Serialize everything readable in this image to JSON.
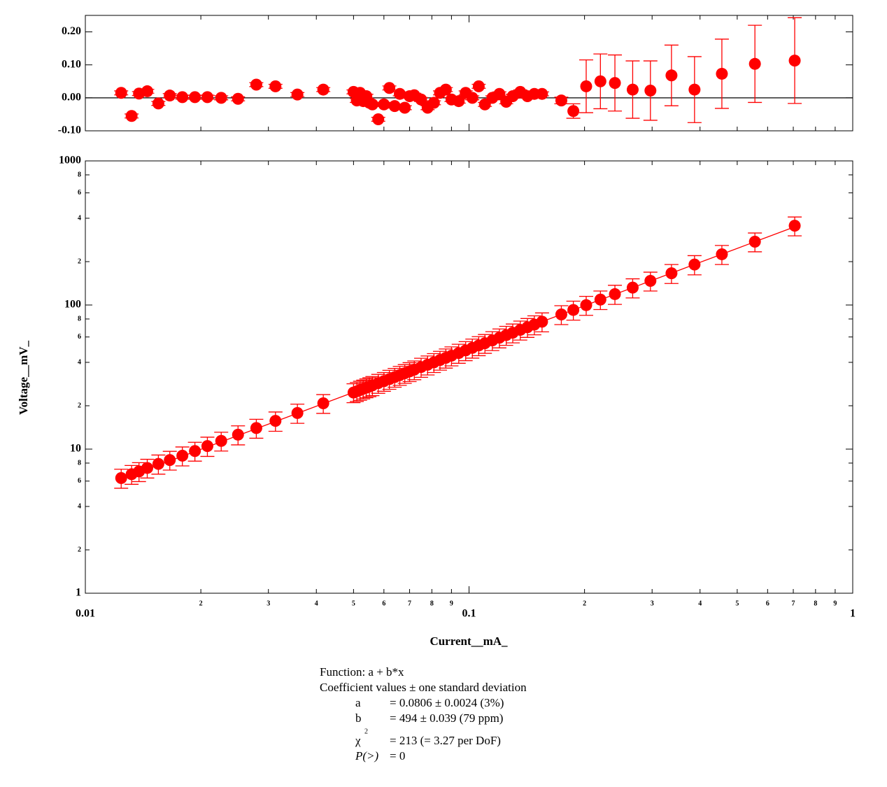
{
  "chart_data": [
    {
      "type": "scatter",
      "x": [
        0.0124,
        0.0132,
        0.0138,
        0.0145,
        0.0155,
        0.0166,
        0.0179,
        0.0193,
        0.0208,
        0.0226,
        0.025,
        0.0279,
        0.0313,
        0.0357,
        0.0417,
        0.05,
        0.051,
        0.052,
        0.053,
        0.054,
        0.055,
        0.056,
        0.058,
        0.06,
        0.062,
        0.064,
        0.066,
        0.068,
        0.07,
        0.072,
        0.075,
        0.078,
        0.081,
        0.084,
        0.087,
        0.09,
        0.094,
        0.098,
        0.102,
        0.106,
        0.11,
        0.115,
        0.12,
        0.125,
        0.13,
        0.136,
        0.142,
        0.148,
        0.155,
        0.174,
        0.187,
        0.202,
        0.22,
        0.24,
        0.267,
        0.297,
        0.337,
        0.387,
        0.456,
        0.556,
        0.706
      ],
      "xlim": [
        0.01,
        1
      ],
      "log_x": true,
      "ylim": [
        -0.1,
        0.25
      ],
      "yticks": [
        {
          "value": -0.1,
          "label": "-0.10"
        },
        {
          "value": 0,
          "label": "0.00"
        },
        {
          "value": 0.1,
          "label": "0.10"
        },
        {
          "value": 0.2,
          "label": "0.20"
        }
      ],
      "series": [
        {
          "color": "#ff0000",
          "values": [
            0.015,
            -0.055,
            0.013,
            0.02,
            -0.017,
            0.007,
            0.002,
            0.002,
            0.002,
            0.0,
            -0.003,
            0.04,
            0.035,
            0.01,
            0.025,
            0.018,
            -0.008,
            0.015,
            -0.01,
            0.005,
            -0.015,
            -0.02,
            -0.065,
            -0.02,
            0.03,
            -0.025,
            0.012,
            -0.03,
            0.005,
            0.008,
            -0.005,
            -0.03,
            -0.015,
            0.015,
            0.025,
            -0.005,
            -0.01,
            0.015,
            0.0,
            0.035,
            -0.02,
            0.0,
            0.012,
            -0.012,
            0.005,
            0.018,
            0.005,
            0.012,
            0.012,
            -0.008,
            -0.04,
            0.035,
            0.05,
            0.045,
            0.025,
            0.022,
            0.068,
            0.025,
            0.073,
            0.103,
            0.113
          ],
          "errors": [
            0.006,
            0.006,
            0.006,
            0.006,
            0.006,
            0.006,
            0.006,
            0.006,
            0.006,
            0.006,
            0.006,
            0.006,
            0.006,
            0.006,
            0.006,
            0.006,
            0.006,
            0.006,
            0.006,
            0.006,
            0.006,
            0.006,
            0.006,
            0.006,
            0.006,
            0.006,
            0.006,
            0.006,
            0.006,
            0.006,
            0.006,
            0.006,
            0.006,
            0.006,
            0.006,
            0.006,
            0.006,
            0.006,
            0.006,
            0.006,
            0.006,
            0.006,
            0.006,
            0.006,
            0.006,
            0.006,
            0.006,
            0.006,
            0.006,
            0.01,
            0.022,
            0.08,
            0.083,
            0.085,
            0.087,
            0.09,
            0.092,
            0.1,
            0.105,
            0.117,
            0.13
          ]
        }
      ]
    },
    {
      "type": "scatter",
      "x": [
        0.0124,
        0.0132,
        0.0138,
        0.0145,
        0.0155,
        0.0166,
        0.0179,
        0.0193,
        0.0208,
        0.0226,
        0.025,
        0.0279,
        0.0313,
        0.0357,
        0.0417,
        0.05,
        0.051,
        0.052,
        0.053,
        0.054,
        0.055,
        0.056,
        0.058,
        0.06,
        0.062,
        0.064,
        0.066,
        0.068,
        0.07,
        0.072,
        0.075,
        0.078,
        0.081,
        0.084,
        0.087,
        0.09,
        0.094,
        0.098,
        0.102,
        0.106,
        0.11,
        0.115,
        0.12,
        0.125,
        0.13,
        0.136,
        0.142,
        0.148,
        0.155,
        0.174,
        0.187,
        0.202,
        0.22,
        0.24,
        0.267,
        0.297,
        0.337,
        0.387,
        0.456,
        0.556,
        0.706
      ],
      "xlim": [
        0.01,
        1
      ],
      "log_x": true,
      "ylim": [
        1,
        1000
      ],
      "log_y": true,
      "x_label": "Current__mA_",
      "y_label": "Voltage__mV_",
      "xticks": [
        0.01,
        {
          "value": 0.02,
          "label": "2"
        },
        {
          "value": 0.03,
          "label": "3"
        },
        {
          "value": 0.04,
          "label": "4"
        },
        {
          "value": 0.05,
          "label": "5"
        },
        {
          "value": 0.06,
          "label": "6"
        },
        {
          "value": 0.07,
          "label": "7"
        },
        {
          "value": 0.08,
          "label": "8"
        },
        {
          "value": 0.09,
          "label": "9"
        },
        0.1,
        {
          "value": 0.2,
          "label": "2"
        },
        {
          "value": 0.3,
          "label": "3"
        },
        {
          "value": 0.4,
          "label": "4"
        },
        {
          "value": 0.5,
          "label": "5"
        },
        {
          "value": 0.6,
          "label": "6"
        },
        {
          "value": 0.7,
          "label": "7"
        },
        {
          "value": 0.8,
          "label": "8"
        },
        {
          "value": 0.9,
          "label": "9"
        },
        1
      ],
      "yticks": [
        1,
        2,
        4,
        6,
        8,
        10,
        {
          "value": 20,
          "label": "2"
        },
        {
          "value": 40,
          "label": "4"
        },
        {
          "value": 60,
          "label": "6"
        },
        {
          "value": 80,
          "label": "8"
        },
        100,
        {
          "value": 200,
          "label": "2"
        },
        {
          "value": 400,
          "label": "4"
        },
        {
          "value": 600,
          "label": "6"
        },
        {
          "value": 800,
          "label": "8"
        },
        1000
      ],
      "series": [
        {
          "color": "#ff0000",
          "values": [
            6.3,
            6.7,
            7.0,
            7.4,
            7.9,
            8.4,
            9.0,
            9.7,
            10.5,
            11.4,
            12.6,
            14.0,
            15.7,
            17.8,
            20.8,
            24.7,
            25.2,
            25.7,
            26.2,
            26.7,
            27.2,
            27.7,
            28.7,
            29.6,
            30.6,
            31.6,
            32.6,
            33.6,
            34.6,
            35.6,
            37.1,
            38.5,
            40.0,
            41.5,
            43.0,
            44.5,
            46.4,
            48.4,
            50.4,
            52.4,
            54.3,
            56.8,
            59.3,
            61.8,
            64.2,
            67.2,
            70.1,
            73.1,
            76.6,
            86.0,
            92.4,
            99.8,
            109,
            119,
            132,
            147,
            166,
            191,
            225,
            275,
            355
          ],
          "errors": [
            0.95,
            1.0,
            1.05,
            1.1,
            1.2,
            1.25,
            1.35,
            1.45,
            1.6,
            1.7,
            1.9,
            2.1,
            2.4,
            2.7,
            3.1,
            3.7,
            3.8,
            3.9,
            3.9,
            4.0,
            4.1,
            4.2,
            4.3,
            4.4,
            4.6,
            4.7,
            4.9,
            5.0,
            5.2,
            5.3,
            5.6,
            5.8,
            6.0,
            6.2,
            6.5,
            6.7,
            7.0,
            7.3,
            7.6,
            7.9,
            8.1,
            8.5,
            8.9,
            9.3,
            9.6,
            10.1,
            10.5,
            11.0,
            11.5,
            12.9,
            13.9,
            15.0,
            16,
            18,
            20,
            22,
            25,
            29,
            34,
            41,
            53
          ]
        }
      ],
      "fit": {
        "a": 0.0806,
        "b": 494,
        "x": [
          0.0124,
          0.706
        ]
      },
      "annotation": {
        "function": "Function: a + b*x",
        "heading": "Coefficient values ± one standard deviation",
        "rows": [
          {
            "name": "a",
            "value": "= 0.0806 ± 0.0024  (3%)"
          },
          {
            "name": "b",
            "value": "= 494 ± 0.039  (79 ppm)"
          },
          {
            "name": "χ",
            "sup": "2",
            "value": "= 213 (= 3.27 per DoF)"
          },
          {
            "name": "P(>)",
            "value": "= 0"
          }
        ]
      }
    }
  ]
}
